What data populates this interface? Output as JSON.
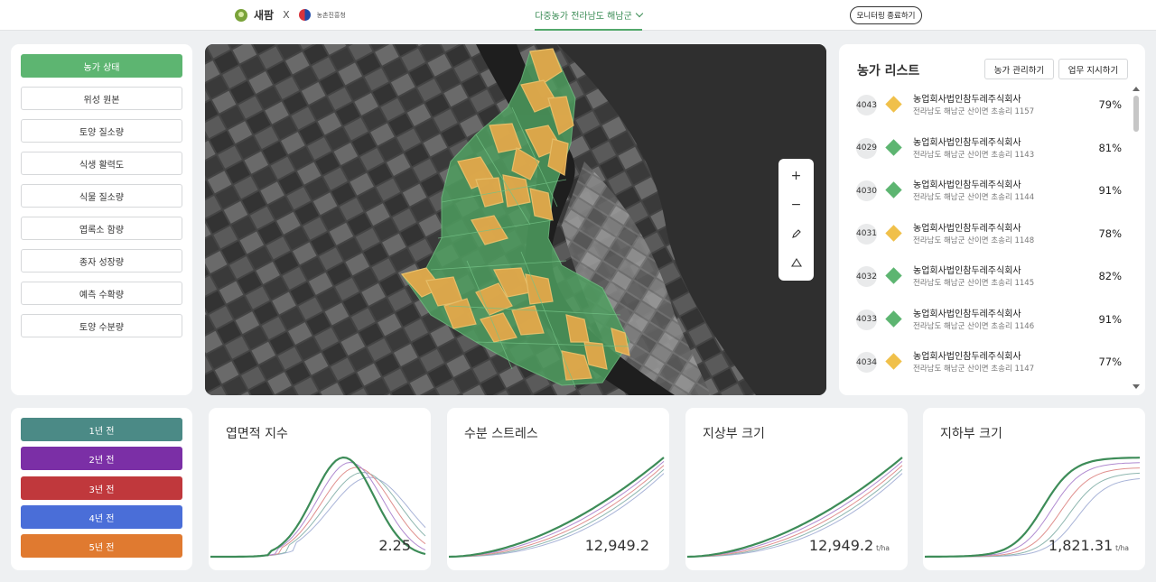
{
  "header": {
    "logo_name": "새팜",
    "logo_x": "X",
    "partner_name": "농촌진흥청",
    "region_label": "다중농가 전라남도 해남군",
    "end_monitoring_label": "모니터링 종료하기"
  },
  "layers": [
    {
      "label": "농가 상태",
      "active": true
    },
    {
      "label": "위성 원본"
    },
    {
      "label": "토양 질소량"
    },
    {
      "label": "식생 활력도"
    },
    {
      "label": "식물 질소량"
    },
    {
      "label": "엽록소 함량"
    },
    {
      "label": "종자 성장량"
    },
    {
      "label": "예측 수확량"
    },
    {
      "label": "토양 수분량"
    }
  ],
  "map_controls": [
    "zoom-in",
    "zoom-out",
    "draw",
    "polygon"
  ],
  "farm_list": {
    "title": "농가 리스트",
    "manage_label": "농가 관리하기",
    "assign_label": "업무 지시하기",
    "items": [
      {
        "id": "4043",
        "status": "warn",
        "name": "농업회사법인참두레주식회사",
        "address": "전라남도 해남군 산이면 초송리 1157",
        "pct": "79%"
      },
      {
        "id": "4029",
        "status": "good",
        "name": "농업회사법인참두레주식회사",
        "address": "전라남도 해남군 산이면 초송리 1143",
        "pct": "81%"
      },
      {
        "id": "4030",
        "status": "good",
        "name": "농업회사법인참두레주식회사",
        "address": "전라남도 해남군 산이면 초송리 1144",
        "pct": "91%"
      },
      {
        "id": "4031",
        "status": "warn",
        "name": "농업회사법인참두레주식회사",
        "address": "전라남도 해남군 산이면 초송리 1148",
        "pct": "78%"
      },
      {
        "id": "4032",
        "status": "good",
        "name": "농업회사법인참두레주식회사",
        "address": "전라남도 해남군 산이면 초송리 1145",
        "pct": "82%"
      },
      {
        "id": "4033",
        "status": "good",
        "name": "농업회사법인참두레주식회사",
        "address": "전라남도 해남군 산이면 초송리 1146",
        "pct": "91%"
      },
      {
        "id": "4034",
        "status": "warn",
        "name": "농업회사법인참두레주식회사",
        "address": "전라남도 해남군 산이면 초송리 1147",
        "pct": "77%"
      }
    ]
  },
  "years": [
    {
      "label": "1년 전",
      "color": "#4b8a86"
    },
    {
      "label": "2년 전",
      "color": "#7b2fa6"
    },
    {
      "label": "3년 전",
      "color": "#c0383c"
    },
    {
      "label": "4년 전",
      "color": "#4a6ed8"
    },
    {
      "label": "5년 전",
      "color": "#e07a30"
    }
  ],
  "colors": {
    "good": "#5db571",
    "warn": "#f0c04a"
  },
  "charts": [
    {
      "title": "엽면적 지수",
      "value": "2.25",
      "unit": ""
    },
    {
      "title": "수분 스트레스",
      "value": "12,949.2",
      "unit": ""
    },
    {
      "title": "지상부 크기",
      "value": "12,949.2",
      "unit": "t/ha"
    },
    {
      "title": "지하부 크기",
      "value": "1,821.31",
      "unit": "t/ha"
    }
  ]
}
